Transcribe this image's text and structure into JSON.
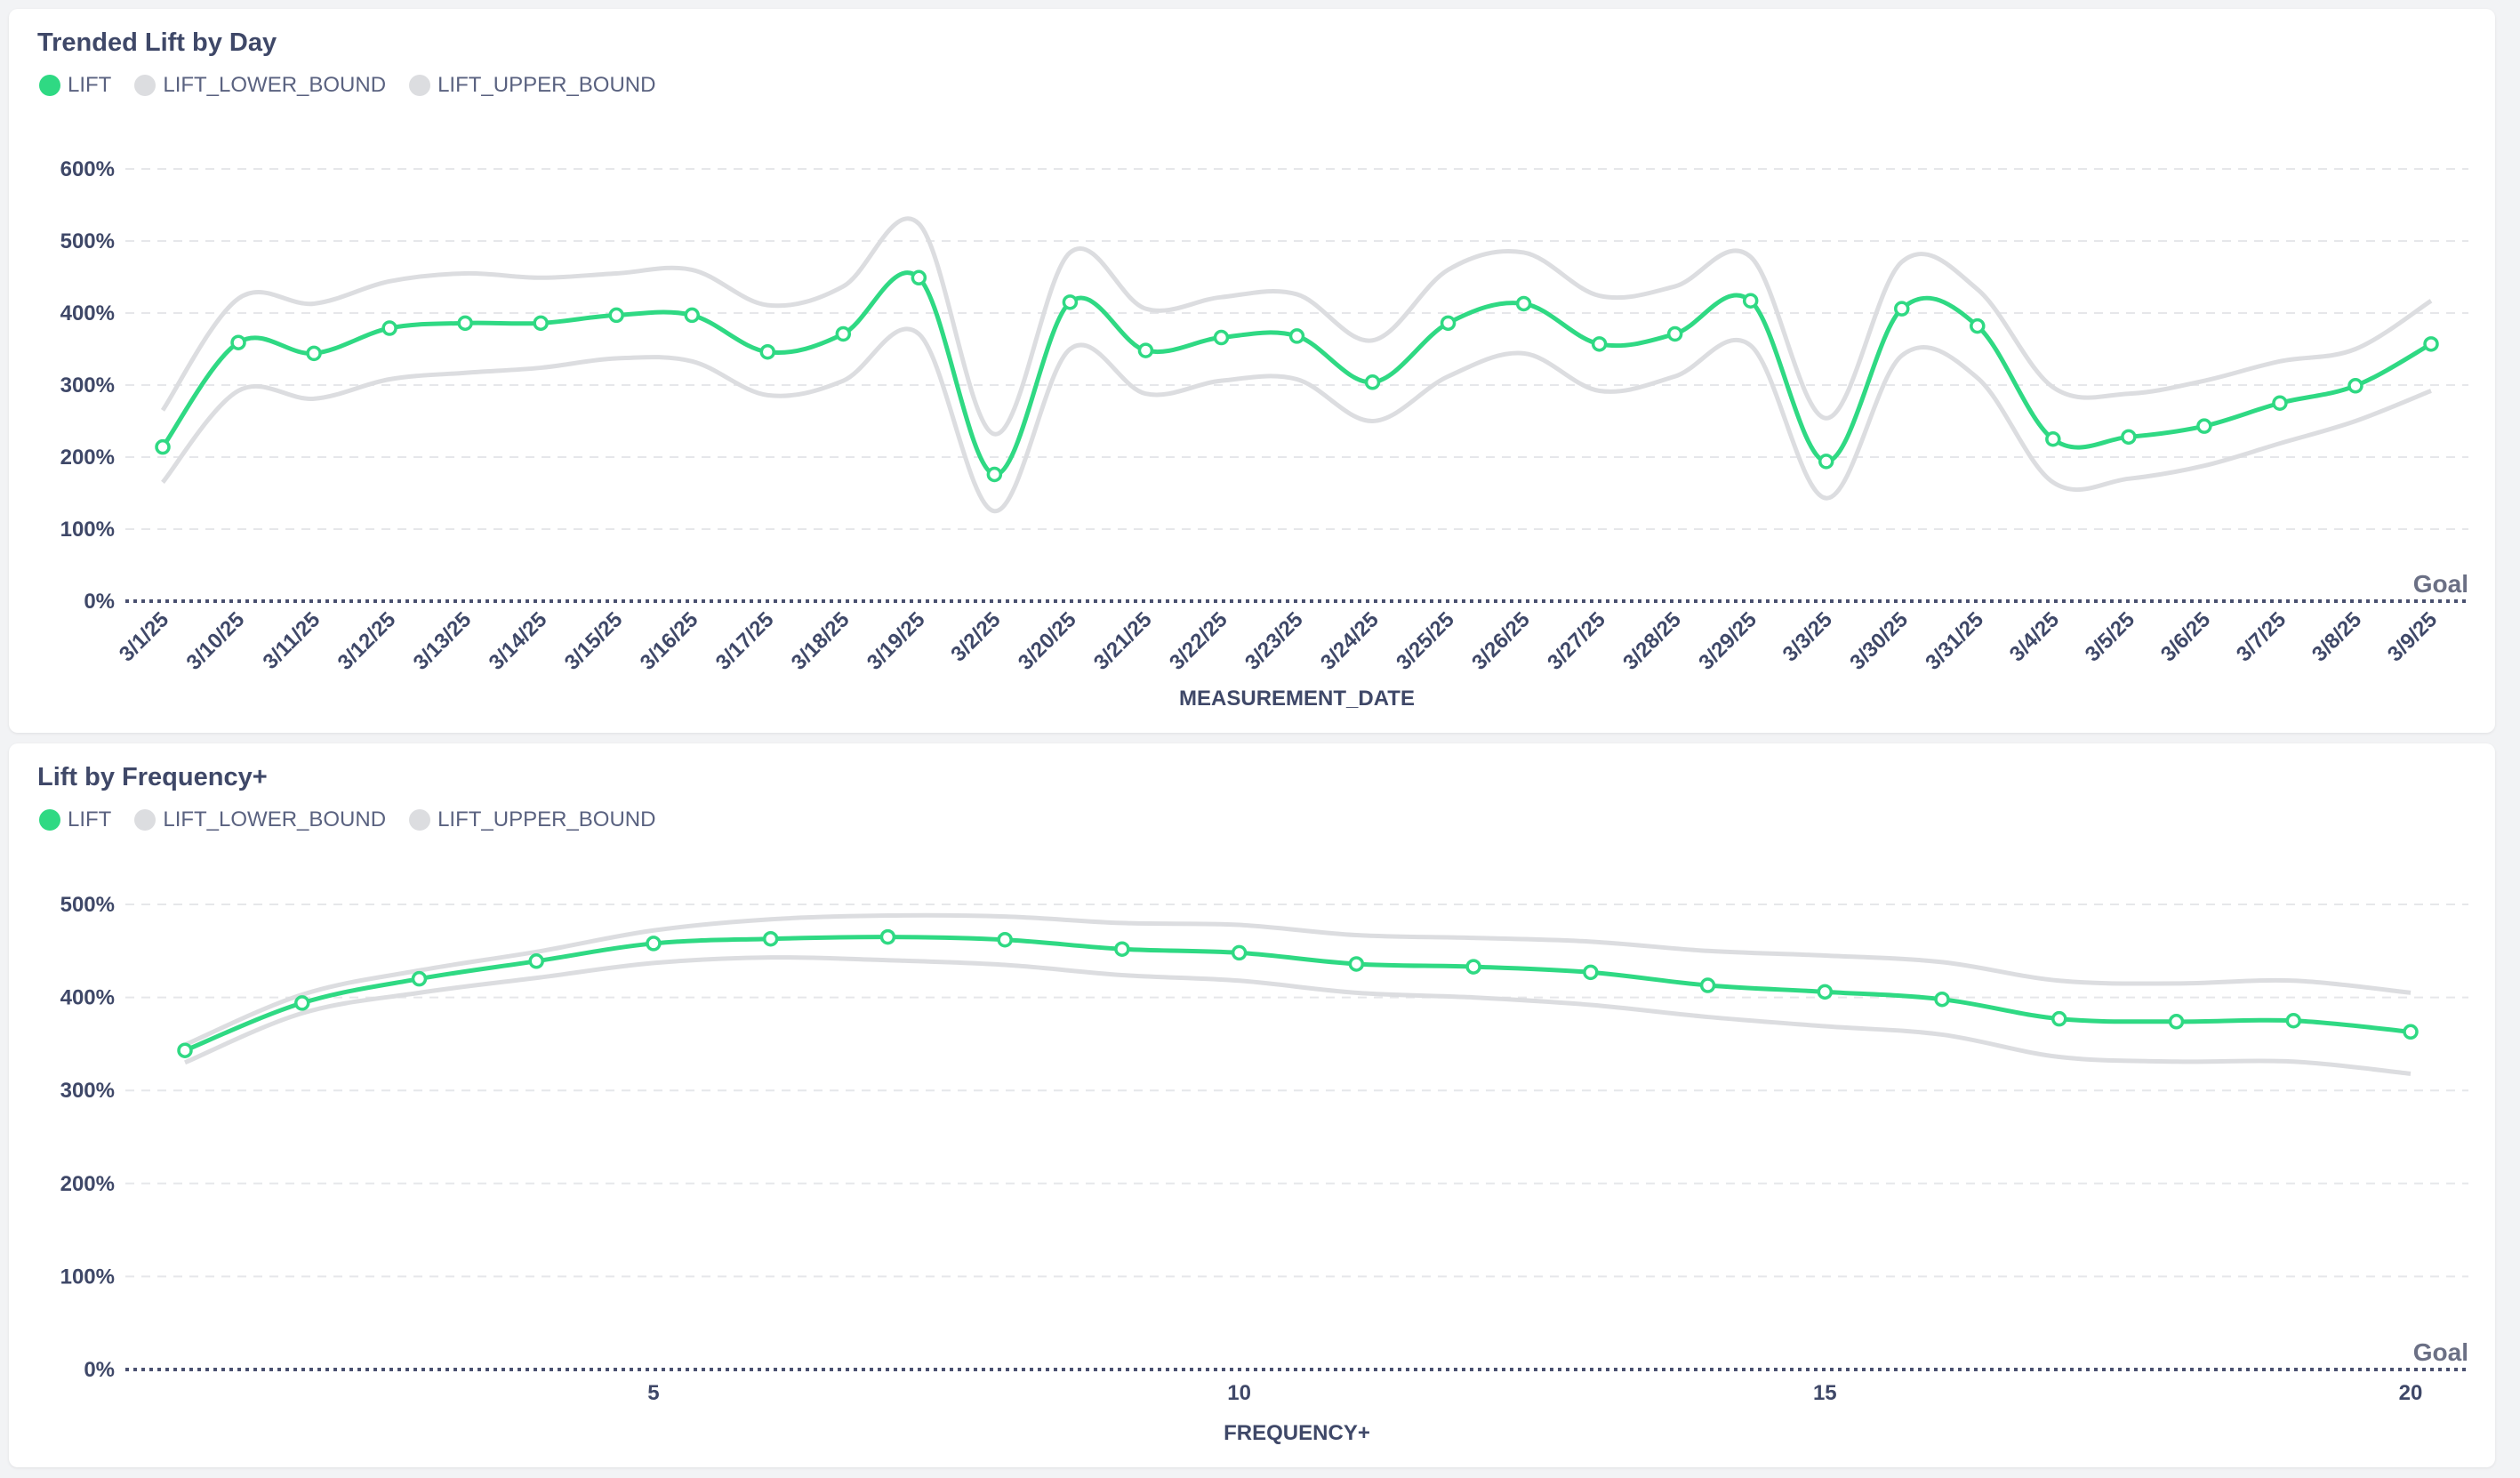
{
  "colors": {
    "lift": "#2fd983",
    "bound": "#dcdde0",
    "grid": "#e6e7ea",
    "goal": "#4a5170",
    "text": "#3f4868"
  },
  "chart_data": [
    {
      "type": "line",
      "title": "Trended Lift by Day",
      "xlabel": "MEASUREMENT_DATE",
      "ylabel": "",
      "ylim": [
        0,
        600
      ],
      "yticks": [
        "0%",
        "100%",
        "200%",
        "300%",
        "400%",
        "500%",
        "600%"
      ],
      "goal_label": "Goal",
      "goal_value": 0,
      "legend": [
        "LIFT",
        "LIFT_LOWER_BOUND",
        "LIFT_UPPER_BOUND"
      ],
      "legend_position": "top-left",
      "grid": true,
      "categories": [
        "3/1/25",
        "3/10/25",
        "3/11/25",
        "3/12/25",
        "3/13/25",
        "3/14/25",
        "3/15/25",
        "3/16/25",
        "3/17/25",
        "3/18/25",
        "3/19/25",
        "3/2/25",
        "3/20/25",
        "3/21/25",
        "3/22/25",
        "3/23/25",
        "3/24/25",
        "3/25/25",
        "3/26/25",
        "3/27/25",
        "3/28/25",
        "3/29/25",
        "3/3/25",
        "3/30/25",
        "3/31/25",
        "3/4/25",
        "3/5/25",
        "3/6/25",
        "3/7/25",
        "3/8/25",
        "3/9/25"
      ],
      "series": [
        {
          "name": "LIFT",
          "values": [
            214,
            359,
            344,
            379,
            386,
            386,
            397,
            397,
            346,
            371,
            449,
            176,
            415,
            348,
            366,
            368,
            304,
            386,
            413,
            357,
            371,
            417,
            194,
            406,
            382,
            225,
            228,
            243,
            275,
            299,
            357
          ]
        },
        {
          "name": "LIFT_LOWER_BOUND",
          "values": [
            165,
            292,
            281,
            308,
            317,
            324,
            337,
            333,
            286,
            306,
            371,
            125,
            350,
            288,
            306,
            308,
            250,
            312,
            344,
            292,
            312,
            355,
            143,
            341,
            310,
            165,
            170,
            188,
            219,
            250,
            292
          ]
        },
        {
          "name": "LIFT_UPPER_BOUND",
          "values": [
            265,
            420,
            413,
            444,
            455,
            449,
            455,
            460,
            411,
            437,
            524,
            232,
            484,
            406,
            422,
            426,
            362,
            460,
            484,
            424,
            437,
            478,
            254,
            471,
            433,
            297,
            288,
            306,
            333,
            350,
            417
          ]
        }
      ]
    },
    {
      "type": "line",
      "title": "Lift by Frequency+",
      "xlabel": "FREQUENCY+",
      "ylabel": "",
      "ylim": [
        0,
        500
      ],
      "xlim": [
        1,
        20
      ],
      "yticks": [
        "0%",
        "100%",
        "200%",
        "300%",
        "400%",
        "500%"
      ],
      "xticks": [
        "5",
        "10",
        "15",
        "20"
      ],
      "goal_label": "Goal",
      "goal_value": 0,
      "legend": [
        "LIFT",
        "LIFT_LOWER_BOUND",
        "LIFT_UPPER_BOUND"
      ],
      "legend_position": "top-left",
      "grid": true,
      "x": [
        1,
        2,
        3,
        4,
        5,
        6,
        7,
        8,
        9,
        10,
        11,
        12,
        13,
        14,
        15,
        16,
        17,
        18,
        19,
        20
      ],
      "series": [
        {
          "name": "LIFT",
          "values": [
            343,
            394,
            420,
            439,
            458,
            463,
            465,
            462,
            452,
            448,
            436,
            433,
            427,
            413,
            406,
            398,
            377,
            374,
            375,
            363
          ]
        },
        {
          "name": "LIFT_LOWER_BOUND",
          "values": [
            330,
            383,
            405,
            421,
            437,
            443,
            440,
            435,
            424,
            418,
            405,
            400,
            392,
            379,
            369,
            360,
            336,
            331,
            331,
            318
          ]
        },
        {
          "name": "LIFT_UPPER_BOUND",
          "values": [
            349,
            403,
            429,
            449,
            472,
            484,
            488,
            487,
            480,
            478,
            467,
            464,
            460,
            450,
            445,
            438,
            418,
            415,
            418,
            405
          ]
        }
      ]
    }
  ]
}
